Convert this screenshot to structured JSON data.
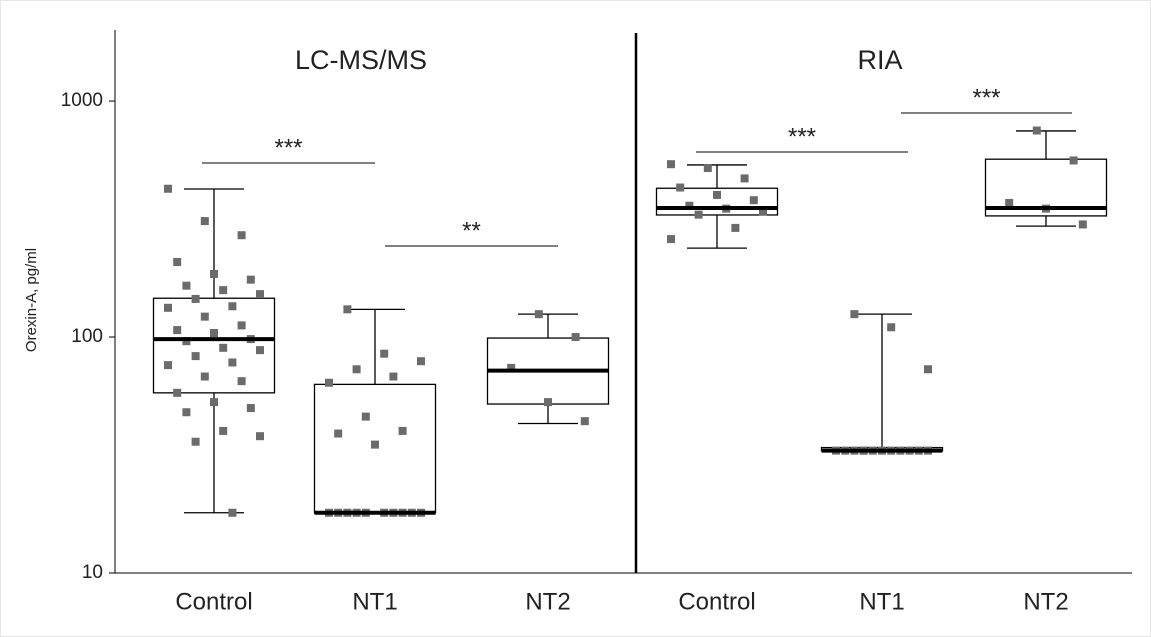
{
  "chart_data": {
    "type": "box",
    "y_label": "Orexin-A, pg/ml",
    "log_scale": true,
    "ylim": [
      10,
      2000
    ],
    "yticks": [
      10,
      100,
      1000
    ],
    "box_color": "#000000",
    "point_color": "#6b6b6b",
    "panels": [
      {
        "title": "LC-MS/MS",
        "categories": [
          "Control",
          "NT1",
          "NT2"
        ],
        "boxes": [
          {
            "min": 18,
            "q1": 58,
            "median": 98,
            "q3": 146,
            "max": 424,
            "points": [
              425,
              310,
              270,
              208,
              185,
              175,
              165,
              158,
              152,
              145,
              135,
              133,
              122,
              112,
              107,
              104,
              98,
              96,
              90,
              88,
              83,
              78,
              76,
              68,
              65,
              58,
              53,
              50,
              48,
              40,
              38,
              36,
              18
            ]
          },
          {
            "min": 18,
            "q1": 18,
            "median": 18,
            "q3": 63,
            "max": 131,
            "points": [
              131,
              85,
              79,
              73,
              68,
              64,
              46,
              40,
              39,
              35,
              18,
              18,
              18,
              18,
              18,
              18,
              18,
              18,
              18,
              18
            ]
          },
          {
            "min": 43,
            "q1": 52,
            "median": 72,
            "q3": 99,
            "max": 125,
            "points": [
              125,
              100,
              74,
              53,
              44
            ]
          }
        ],
        "annotations": [
          "***",
          "**"
        ]
      },
      {
        "title": "RIA",
        "categories": [
          "Control",
          "NT1",
          "NT2"
        ],
        "boxes": [
          {
            "min": 238,
            "q1": 329,
            "median": 352,
            "q3": 427,
            "max": 536,
            "points": [
              540,
              520,
              470,
              430,
              400,
              380,
              360,
              350,
              340,
              330,
              290,
              260
            ]
          },
          {
            "min": 33,
            "q1": 33,
            "median": 33,
            "q3": 34,
            "max": 125,
            "points": [
              125,
              110,
              73,
              33,
              33,
              33,
              33,
              33,
              33,
              33,
              33,
              33,
              33,
              33,
              33
            ]
          },
          {
            "min": 295,
            "q1": 326,
            "median": 352,
            "q3": 567,
            "max": 747,
            "points": [
              750,
              560,
              370,
              350,
              300
            ]
          }
        ],
        "annotations": [
          "***",
          "***"
        ]
      }
    ]
  }
}
